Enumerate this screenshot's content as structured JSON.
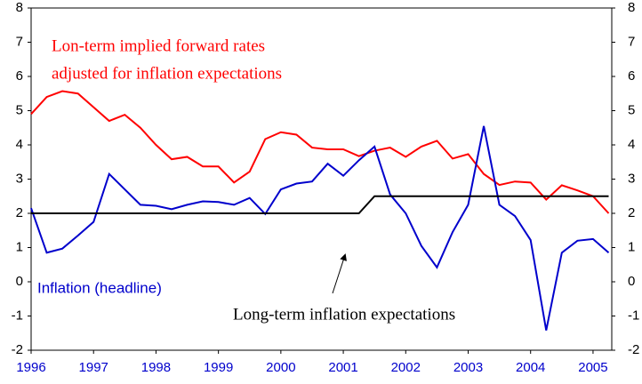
{
  "chart_data": {
    "type": "line",
    "x": [
      1996,
      1996.25,
      1996.5,
      1996.75,
      1997,
      1997.25,
      1997.5,
      1997.75,
      1998,
      1998.25,
      1998.5,
      1998.75,
      1999,
      1999.25,
      1999.5,
      1999.75,
      2000,
      2000.25,
      2000.5,
      2000.75,
      2001,
      2001.25,
      2001.5,
      2001.75,
      2002,
      2002.25,
      2002.5,
      2002.75,
      2003,
      2003.25,
      2003.5,
      2003.75,
      2004,
      2004.25,
      2004.5,
      2004.75,
      2005,
      2005.25
    ],
    "series": [
      {
        "color": "#ff0000",
        "values": [
          4.9,
          5.4,
          5.57,
          5.5,
          5.1,
          4.7,
          4.88,
          4.5,
          4.0,
          3.58,
          3.65,
          3.37,
          3.37,
          2.9,
          3.22,
          4.17,
          4.37,
          4.3,
          3.92,
          3.87,
          3.87,
          3.67,
          3.83,
          3.92,
          3.65,
          3.95,
          4.12,
          3.6,
          3.73,
          3.15,
          2.83,
          2.93,
          2.9,
          2.4,
          2.82,
          2.67,
          2.5,
          2.0
        ]
      },
      {
        "name": "Inflation (headline)",
        "color": "#0000cc",
        "values": [
          2.15,
          0.85,
          0.97,
          1.35,
          1.75,
          3.15,
          2.7,
          2.25,
          2.22,
          2.12,
          2.25,
          2.35,
          2.33,
          2.25,
          2.45,
          1.98,
          2.7,
          2.87,
          2.93,
          3.45,
          3.1,
          3.55,
          3.95,
          2.55,
          2.0,
          1.05,
          0.42,
          1.45,
          2.25,
          4.55,
          2.25,
          1.92,
          1.22,
          -1.42,
          0.85,
          1.2,
          1.25,
          0.85
        ]
      },
      {
        "name": "Long-term inflation expectations",
        "color": "#000000",
        "values": [
          2,
          2,
          2,
          2,
          2,
          2,
          2,
          2,
          2,
          2,
          2,
          2,
          2,
          2,
          2,
          2,
          2,
          2,
          2,
          2,
          2,
          2,
          2.5,
          2.5,
          2.5,
          2.5,
          2.5,
          2.5,
          2.5,
          2.5,
          2.5,
          2.5,
          2.5,
          2.5,
          2.5,
          2.5,
          2.5,
          2.5
        ]
      }
    ],
    "annotations": [
      "Lon-term implied forward rates",
      "adjusted for inflation expectations"
    ],
    "xlim": [
      1996,
      2005.3
    ],
    "xticks": [
      1996,
      1997,
      1998,
      1999,
      2000,
      2001,
      2002,
      2003,
      2004,
      2005
    ],
    "ylim": [
      -2,
      8
    ],
    "yticks": [
      -2,
      -1,
      0,
      1,
      2,
      3,
      4,
      5,
      6,
      7,
      8
    ],
    "y2lim": [
      -2,
      8
    ],
    "y2ticks": [
      -2,
      -1,
      0,
      1,
      2,
      3,
      4,
      5,
      6,
      7,
      8
    ]
  }
}
